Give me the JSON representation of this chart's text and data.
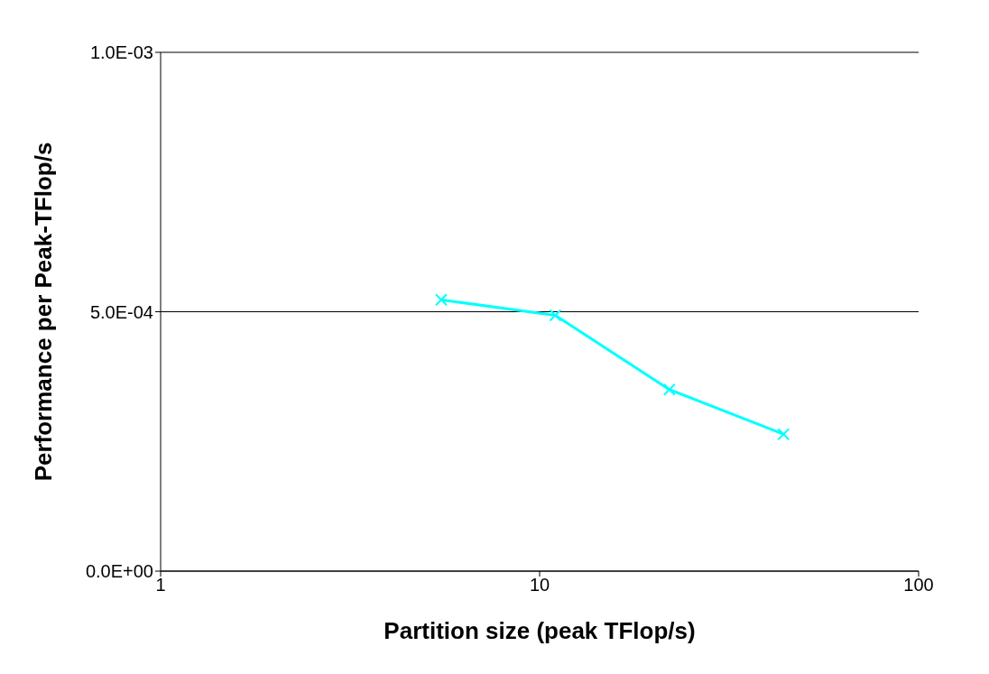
{
  "chart_data": {
    "type": "line",
    "xlabel": "Partition size (peak TFlop/s)",
    "ylabel": "Performance per Peak-TFlop/s",
    "x": [
      5.5,
      11,
      22,
      44
    ],
    "series": [
      {
        "color": "#00ffff",
        "values": [
          0.000523,
          0.000493,
          0.00035,
          0.000264
        ]
      }
    ],
    "log": "x",
    "xlim": [
      1,
      100
    ],
    "xticks": [
      1,
      10,
      100
    ],
    "ylim": [
      0,
      0.001
    ],
    "yticks": [
      {
        "value": 0,
        "label": "0.0E+00"
      },
      {
        "value": 0.0005,
        "label": "5.0E-04"
      },
      {
        "value": 0.001,
        "label": "1.0E-03"
      }
    ],
    "grid": "y",
    "marker": "cross",
    "line_style": "solid"
  }
}
